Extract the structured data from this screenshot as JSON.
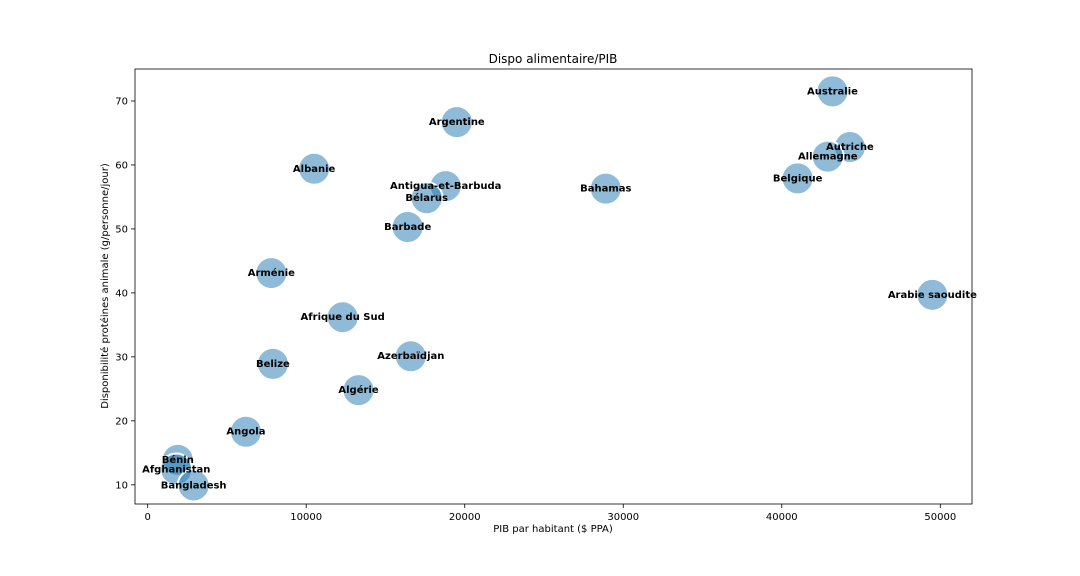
{
  "chart_data": {
    "type": "scatter",
    "title": "Dispo alimentaire/PIB",
    "xlabel": "PIB par habitant ($ PPA)",
    "ylabel": "Disponibilité protéines animale (g/personne/jour)",
    "xlim": [
      -800,
      52000
    ],
    "ylim": [
      7,
      75
    ],
    "xticks": [
      0,
      10000,
      20000,
      30000,
      40000,
      50000
    ],
    "yticks": [
      10,
      20,
      30,
      40,
      50,
      60,
      70
    ],
    "grid": false,
    "color": "#1f77b4",
    "points": [
      {
        "label": "Australie",
        "x": 43200,
        "y": 71.5
      },
      {
        "label": "Argentine",
        "x": 19500,
        "y": 66.7
      },
      {
        "label": "Autriche",
        "x": 44300,
        "y": 62.8
      },
      {
        "label": "Allemagne",
        "x": 42900,
        "y": 61.3
      },
      {
        "label": "Albanie",
        "x": 10500,
        "y": 59.4
      },
      {
        "label": "Belgique",
        "x": 41000,
        "y": 57.9
      },
      {
        "label": "Antigua-et-Barbuda",
        "x": 18800,
        "y": 56.7
      },
      {
        "label": "Bahamas",
        "x": 28900,
        "y": 56.3
      },
      {
        "label": "Bélarus",
        "x": 17600,
        "y": 54.8
      },
      {
        "label": "Barbade",
        "x": 16400,
        "y": 50.3
      },
      {
        "label": "Arménie",
        "x": 7800,
        "y": 43.1
      },
      {
        "label": "Arabie saoudite",
        "x": 49500,
        "y": 39.7
      },
      {
        "label": "Afrique du Sud",
        "x": 12300,
        "y": 36.2
      },
      {
        "label": "Azerbaïdjan",
        "x": 16600,
        "y": 30.1
      },
      {
        "label": "Belize",
        "x": 7900,
        "y": 28.9
      },
      {
        "label": "Algérie",
        "x": 13300,
        "y": 24.8
      },
      {
        "label": "Angola",
        "x": 6200,
        "y": 18.3
      },
      {
        "label": "Bénin",
        "x": 1900,
        "y": 13.9
      },
      {
        "label": "Afghanistan",
        "x": 1800,
        "y": 12.4
      },
      {
        "label": "Bangladesh",
        "x": 2900,
        "y": 9.9
      }
    ]
  }
}
